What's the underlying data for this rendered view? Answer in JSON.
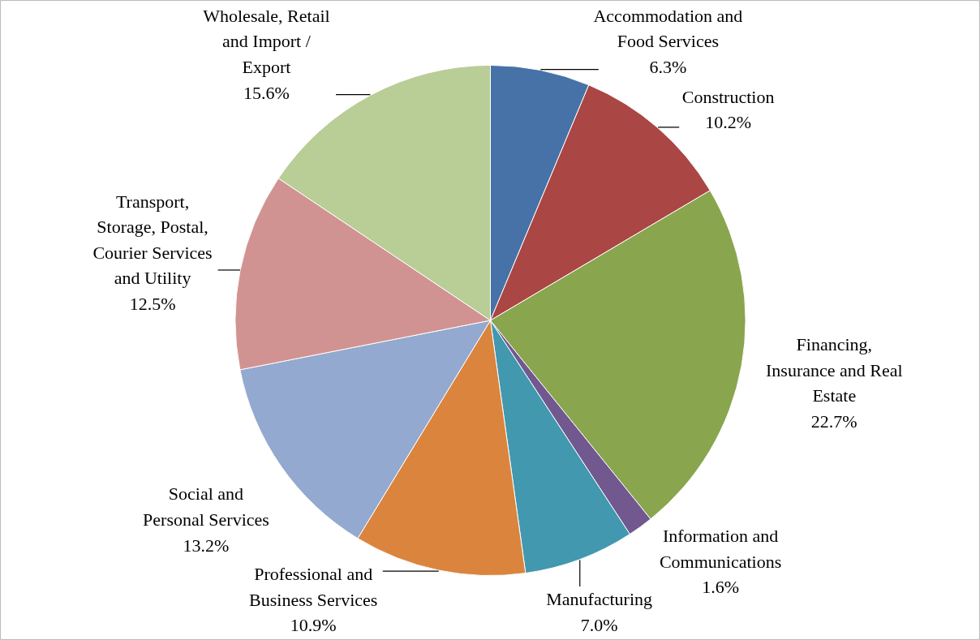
{
  "chart_data": {
    "type": "pie",
    "categories": [
      "Accommodation and Food Services",
      "Construction",
      "Financing, Insurance and Real Estate",
      "Information and Communications",
      "Manufacturing",
      "Professional and Business Services",
      "Social and Personal Services",
      "Transport, Storage, Postal, Courier Services and Utility",
      "Wholesale, Retail and Import / Export"
    ],
    "values": [
      6.3,
      10.2,
      22.7,
      1.6,
      7.0,
      10.9,
      13.2,
      12.5,
      15.6
    ],
    "value_labels": [
      "6.3%",
      "10.2%",
      "22.7%",
      "1.6%",
      "7.0%",
      "10.9%",
      "13.2%",
      "12.5%",
      "15.6%"
    ],
    "colors": [
      "#4672a8",
      "#aa4644",
      "#89a54e",
      "#71588f",
      "#4198af",
      "#db843d",
      "#93a9cf",
      "#d19392",
      "#b9cd96"
    ]
  }
}
